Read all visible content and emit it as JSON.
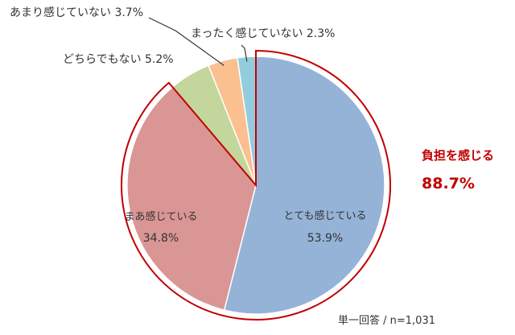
{
  "chart_data": {
    "type": "pie",
    "title": "",
    "slices": [
      {
        "label": "とても感じている",
        "value": 53.9,
        "display": "53.9%",
        "color": "#95b3d7"
      },
      {
        "label": "まあ感じている",
        "value": 34.8,
        "display": "34.8%",
        "color": "#d99694"
      },
      {
        "label": "どちらでもない",
        "value": 5.2,
        "display": "5.2%",
        "color": "#c3d69b"
      },
      {
        "label": "あまり感じていない",
        "value": 3.7,
        "display": "3.7%",
        "color": "#fac090"
      },
      {
        "label": "まったく感じていない",
        "value": 2.3,
        "display": "2.3%",
        "color": "#93cddd"
      }
    ],
    "outside_labels": {
      "neither": "どちらでもない 5.2%",
      "not_much": "あまり感じていない 3.7%",
      "not_at_all": "まったく感じていない 2.3%"
    },
    "callout": {
      "label": "負担を感じる",
      "value": "88.7%",
      "color": "#c00000"
    },
    "note": "単一回答 / n=1,031"
  }
}
